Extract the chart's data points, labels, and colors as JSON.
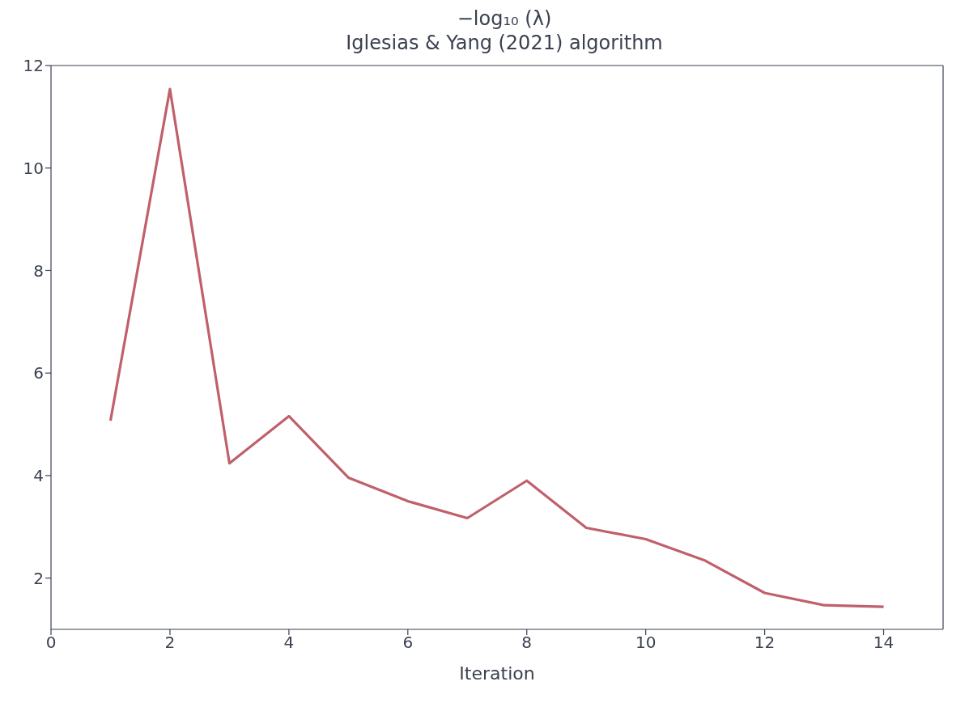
{
  "chart_data": {
    "type": "line",
    "title": "−log₁₀ (λ)",
    "subtitle": "Iglesias & Yang (2021) algorithm",
    "xlabel": "Iteration",
    "x": [
      1,
      2,
      3,
      4,
      5,
      6,
      7,
      8,
      9,
      10,
      11,
      12,
      13,
      14
    ],
    "series": [
      {
        "color": "#c0606b",
        "values": [
          5.07,
          11.54,
          4.24,
          5.16,
          3.96,
          3.5,
          3.17,
          3.9,
          2.98,
          2.76,
          2.34,
          1.71,
          1.47,
          1.44
        ]
      }
    ],
    "xlim": [
      0,
      15
    ],
    "xticks": [
      0,
      2,
      4,
      6,
      8,
      10,
      12,
      14
    ],
    "ylim": [
      1,
      12
    ],
    "yticks": [
      2,
      4,
      6,
      8,
      10,
      12
    ],
    "grid": false,
    "marker": "none",
    "line_style": "solid"
  }
}
